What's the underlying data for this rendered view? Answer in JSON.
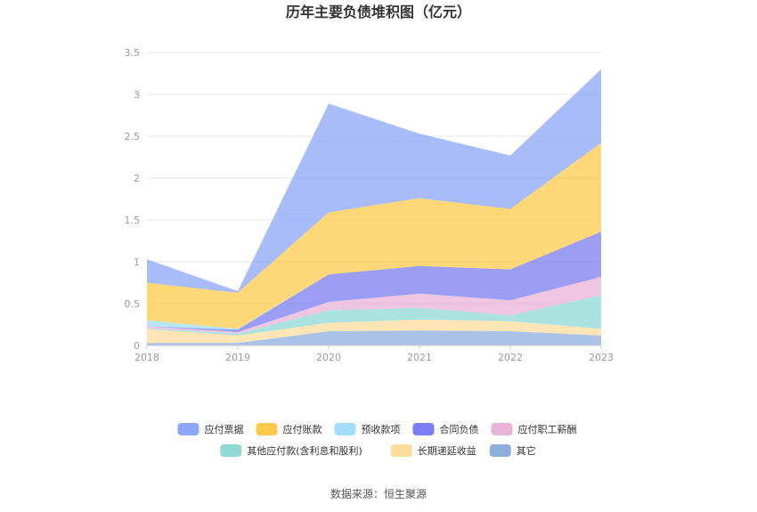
{
  "chart_data": {
    "type": "area",
    "stacked": true,
    "title": "历年主要负债堆积图（亿元）",
    "categories": [
      "2018",
      "2019",
      "2020",
      "2021",
      "2022",
      "2023"
    ],
    "ylim": [
      0,
      3.5
    ],
    "yticks": [
      "0",
      "0.5",
      "1",
      "1.5",
      "2",
      "2.5",
      "3",
      "3.5"
    ],
    "grid": true,
    "legend_position": "bottom",
    "series": [
      {
        "name": "其它",
        "color": "#8eaede",
        "values": [
          0.03,
          0.03,
          0.17,
          0.18,
          0.17,
          0.12
        ]
      },
      {
        "name": "长期递延收益",
        "color": "#fddc9c",
        "values": [
          0.17,
          0.09,
          0.1,
          0.13,
          0.12,
          0.08
        ]
      },
      {
        "name": "其他应付款(含利息和股利)",
        "color": "#8ed8d5",
        "values": [
          0.01,
          0.02,
          0.15,
          0.14,
          0.07,
          0.4
        ]
      },
      {
        "name": "应付职工薪酬",
        "color": "#e8b3d8",
        "values": [
          0.02,
          0.02,
          0.1,
          0.17,
          0.18,
          0.22
        ]
      },
      {
        "name": "合同负债",
        "color": "#7a7ef0",
        "values": [
          0.0,
          0.03,
          0.33,
          0.33,
          0.37,
          0.54
        ]
      },
      {
        "name": "预收款项",
        "color": "#a2dcf8",
        "values": [
          0.07,
          0.01,
          0.0,
          0.0,
          0.0,
          0.0
        ]
      },
      {
        "name": "应付账款",
        "color": "#fdc94a",
        "values": [
          0.45,
          0.43,
          0.74,
          0.81,
          0.72,
          1.06
        ]
      },
      {
        "name": "应付票据",
        "color": "#8ca6f8",
        "values": [
          0.28,
          0.02,
          1.3,
          0.77,
          0.64,
          0.88
        ]
      }
    ]
  },
  "legend_rows": [
    [
      {
        "label": "应付票据",
        "color": "#8ca6f8"
      },
      {
        "label": "应付账款",
        "color": "#fdc94a"
      },
      {
        "label": "预收款项",
        "color": "#a2dcf8"
      },
      {
        "label": "合同负债",
        "color": "#7a7ef0"
      },
      {
        "label": "应付职工薪酬",
        "color": "#e8b3d8"
      }
    ],
    [
      {
        "label": "其他应付款(含利息和股利)",
        "color": "#8ed8d5"
      },
      {
        "label": "长期递延收益",
        "color": "#fddc9c"
      },
      {
        "label": "其它",
        "color": "#8eaede"
      }
    ]
  ],
  "source": "数据来源：恒生聚源"
}
